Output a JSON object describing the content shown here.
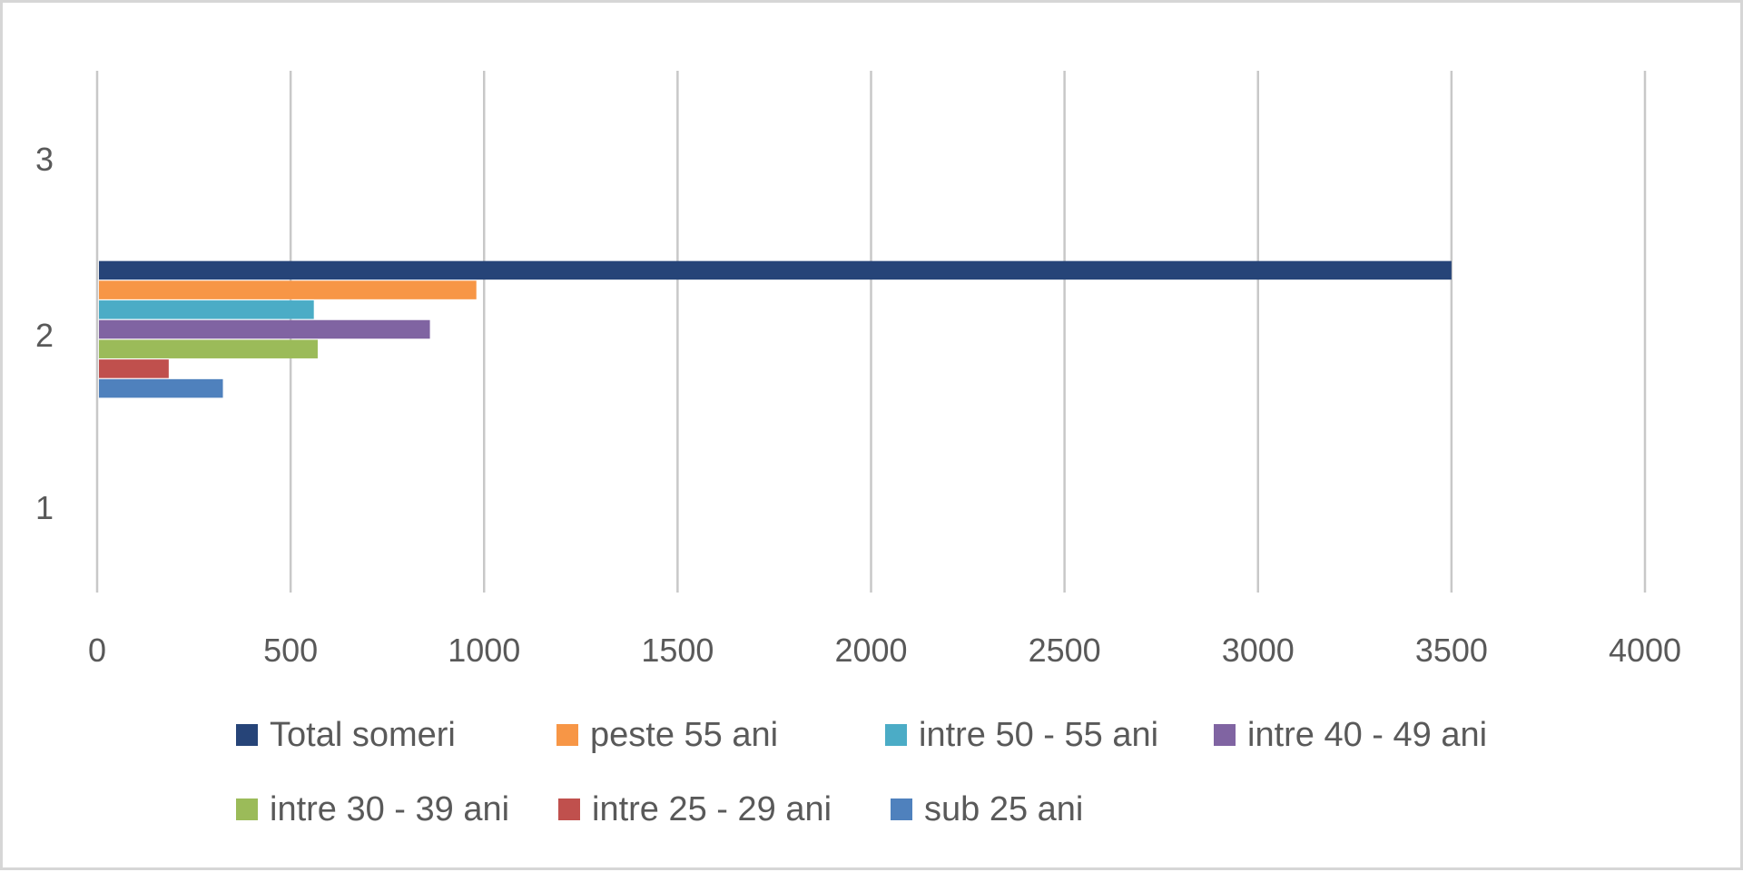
{
  "chart_data": {
    "type": "bar",
    "orientation": "horizontal",
    "categories": [
      "1",
      "2",
      "3"
    ],
    "y_tick_labels": [
      "1",
      "2",
      "3"
    ],
    "x_tick_labels": [
      "0",
      "500",
      "1000",
      "1500",
      "2000",
      "2500",
      "3000",
      "3500",
      "4000"
    ],
    "xlim": [
      0,
      4000
    ],
    "grid": "vertical",
    "legend_position": "bottom",
    "series": [
      {
        "name": "Total someri",
        "color": "#264478",
        "values": [
          0,
          3500,
          0
        ]
      },
      {
        "name": "peste 55 ani",
        "color": "#F79646",
        "values": [
          0,
          980,
          0
        ]
      },
      {
        "name": "intre 50 - 55 ani",
        "color": "#4BACC6",
        "values": [
          0,
          560,
          0
        ]
      },
      {
        "name": "intre 40 - 49 ani",
        "color": "#8064A2",
        "values": [
          0,
          860,
          0
        ]
      },
      {
        "name": "intre 30 - 39 ani",
        "color": "#9BBB59",
        "values": [
          0,
          570,
          0
        ]
      },
      {
        "name": "intre 25 - 29 ani",
        "color": "#C0504D",
        "values": [
          0,
          185,
          0
        ]
      },
      {
        "name": "sub 25 ani",
        "color": "#4F81BD",
        "values": [
          0,
          325,
          0
        ]
      }
    ]
  }
}
